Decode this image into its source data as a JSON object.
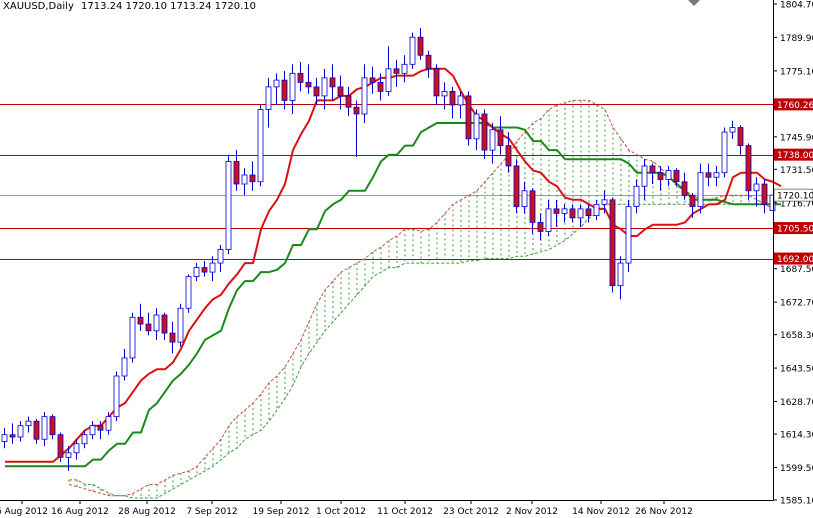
{
  "header": {
    "symbol": "XAUUSD,Daily",
    "values": "1713.24 1720.10 1713.24 1720.10"
  },
  "chart_data": {
    "type": "candlestick",
    "title": "XAUUSD,Daily",
    "ylim": [
      1585.1,
      1804.7
    ],
    "y_ticks": [
      "1804.70",
      "1789.90",
      "1775.10",
      "1760.26",
      "1745.90",
      "1731.50",
      "1720.10",
      "1716.70",
      "1705.50",
      "1692.00",
      "1687.50",
      "1672.70",
      "1658.30",
      "1643.50",
      "1628.70",
      "1614.30",
      "1599.50",
      "1585.10"
    ],
    "x_ticks": [
      "6 Aug 2012",
      "16 Aug 2012",
      "28 Aug 2012",
      "7 Sep 2012",
      "19 Sep 2012",
      "1 Oct 2012",
      "11 Oct 2012",
      "23 Oct 2012",
      "2 Nov 2012",
      "14 Nov 2012",
      "26 Nov 2012"
    ],
    "horizontal_levels": [
      {
        "price": 1760.26,
        "label": "1760.26"
      },
      {
        "price": 1738.0,
        "label": "1738.00"
      },
      {
        "price": 1705.5,
        "label": "1705.50"
      },
      {
        "price": 1692.0,
        "label": "1692.00"
      }
    ],
    "current_price": {
      "price": 1720.1,
      "label": "1720.10"
    },
    "candles": [
      [
        1611,
        1617,
        1608,
        1614
      ],
      [
        1614,
        1619,
        1610,
        1613
      ],
      [
        1613,
        1620,
        1611,
        1618
      ],
      [
        1618,
        1622,
        1615,
        1620
      ],
      [
        1620,
        1621,
        1610,
        1612
      ],
      [
        1612,
        1624,
        1609,
        1622
      ],
      [
        1622,
        1623,
        1612,
        1614
      ],
      [
        1614,
        1615,
        1602,
        1604
      ],
      [
        1604,
        1609,
        1598,
        1606
      ],
      [
        1606,
        1612,
        1603,
        1610
      ],
      [
        1610,
        1616,
        1608,
        1614
      ],
      [
        1614,
        1620,
        1612,
        1618
      ],
      [
        1618,
        1620,
        1612,
        1616
      ],
      [
        1616,
        1624,
        1614,
        1622
      ],
      [
        1622,
        1642,
        1620,
        1640
      ],
      [
        1640,
        1652,
        1638,
        1648
      ],
      [
        1648,
        1668,
        1646,
        1666
      ],
      [
        1666,
        1672,
        1660,
        1663
      ],
      [
        1663,
        1668,
        1658,
        1660
      ],
      [
        1660,
        1670,
        1656,
        1667
      ],
      [
        1667,
        1668,
        1656,
        1659
      ],
      [
        1659,
        1664,
        1650,
        1655
      ],
      [
        1655,
        1672,
        1653,
        1670
      ],
      [
        1670,
        1685,
        1668,
        1684
      ],
      [
        1684,
        1690,
        1682,
        1688
      ],
      [
        1688,
        1691,
        1684,
        1686
      ],
      [
        1686,
        1693,
        1682,
        1690
      ],
      [
        1690,
        1698,
        1686,
        1696
      ],
      [
        1696,
        1738,
        1694,
        1735
      ],
      [
        1735,
        1740,
        1722,
        1725
      ],
      [
        1725,
        1732,
        1720,
        1729
      ],
      [
        1729,
        1735,
        1722,
        1726
      ],
      [
        1726,
        1760,
        1724,
        1758
      ],
      [
        1758,
        1772,
        1750,
        1768
      ],
      [
        1768,
        1774,
        1760,
        1771
      ],
      [
        1771,
        1775,
        1758,
        1762
      ],
      [
        1762,
        1778,
        1756,
        1774
      ],
      [
        1774,
        1779,
        1766,
        1770
      ],
      [
        1770,
        1778,
        1765,
        1768
      ],
      [
        1768,
        1772,
        1760,
        1764
      ],
      [
        1764,
        1776,
        1758,
        1772
      ],
      [
        1772,
        1778,
        1762,
        1768
      ],
      [
        1768,
        1773,
        1758,
        1764
      ],
      [
        1764,
        1768,
        1755,
        1759
      ],
      [
        1759,
        1762,
        1737,
        1756
      ],
      [
        1756,
        1778,
        1752,
        1772
      ],
      [
        1772,
        1777,
        1765,
        1770
      ],
      [
        1770,
        1774,
        1762,
        1766
      ],
      [
        1766,
        1786,
        1764,
        1776
      ],
      [
        1776,
        1780,
        1768,
        1774
      ],
      [
        1774,
        1782,
        1770,
        1778
      ],
      [
        1778,
        1792,
        1776,
        1790
      ],
      [
        1790,
        1794,
        1780,
        1782
      ],
      [
        1782,
        1784,
        1772,
        1776
      ],
      [
        1776,
        1778,
        1760,
        1764
      ],
      [
        1764,
        1770,
        1758,
        1766
      ],
      [
        1766,
        1768,
        1754,
        1760
      ],
      [
        1760,
        1766,
        1754,
        1764
      ],
      [
        1764,
        1766,
        1742,
        1745
      ],
      [
        1745,
        1758,
        1740,
        1756
      ],
      [
        1756,
        1758,
        1736,
        1740
      ],
      [
        1740,
        1752,
        1734,
        1749
      ],
      [
        1749,
        1755,
        1738,
        1742
      ],
      [
        1742,
        1748,
        1730,
        1733
      ],
      [
        1733,
        1736,
        1712,
        1715
      ],
      [
        1715,
        1726,
        1712,
        1722
      ],
      [
        1722,
        1723,
        1703,
        1708
      ],
      [
        1708,
        1712,
        1700,
        1704
      ],
      [
        1704,
        1718,
        1702,
        1714
      ],
      [
        1714,
        1718,
        1706,
        1712
      ],
      [
        1712,
        1716,
        1708,
        1714
      ],
      [
        1714,
        1716,
        1708,
        1710
      ],
      [
        1710,
        1716,
        1706,
        1714
      ],
      [
        1714,
        1716,
        1708,
        1711
      ],
      [
        1711,
        1718,
        1709,
        1716
      ],
      [
        1716,
        1722,
        1712,
        1718
      ],
      [
        1718,
        1719,
        1677,
        1680
      ],
      [
        1680,
        1693,
        1674,
        1690
      ],
      [
        1690,
        1718,
        1686,
        1715
      ],
      [
        1715,
        1727,
        1712,
        1724
      ],
      [
        1724,
        1736,
        1718,
        1733
      ],
      [
        1733,
        1734,
        1725,
        1730
      ],
      [
        1730,
        1733,
        1722,
        1727
      ],
      [
        1727,
        1733,
        1724,
        1731
      ],
      [
        1731,
        1732,
        1724,
        1726
      ],
      [
        1726,
        1730,
        1718,
        1720
      ],
      [
        1720,
        1721,
        1710,
        1715
      ],
      [
        1715,
        1734,
        1712,
        1730
      ],
      [
        1730,
        1734,
        1724,
        1728
      ],
      [
        1728,
        1733,
        1724,
        1730
      ],
      [
        1730,
        1750,
        1728,
        1748
      ],
      [
        1748,
        1753,
        1745,
        1750
      ],
      [
        1750,
        1751,
        1738,
        1742
      ],
      [
        1742,
        1743,
        1718,
        1722
      ],
      [
        1722,
        1728,
        1715,
        1725
      ],
      [
        1725,
        1727,
        1712,
        1716
      ],
      [
        1713.24,
        1720.1,
        1713.24,
        1720.1
      ]
    ],
    "tenkan_sen": [
      1602,
      1602,
      1602,
      1602,
      1602,
      1602,
      1602,
      1605,
      1608,
      1612,
      1616,
      1618,
      1618,
      1622,
      1626,
      1628,
      1633,
      1638,
      1641,
      1643,
      1643,
      1646,
      1652,
      1660,
      1665,
      1670,
      1674,
      1676,
      1681,
      1685,
      1690,
      1690,
      1705,
      1713,
      1718,
      1725,
      1740,
      1747,
      1753,
      1762,
      1762,
      1762,
      1764,
      1764,
      1767,
      1768,
      1770,
      1772,
      1772,
      1773,
      1773,
      1773,
      1775,
      1776,
      1776,
      1776,
      1773,
      1766,
      1760,
      1755,
      1753,
      1750,
      1747,
      1745,
      1740,
      1735,
      1731,
      1730,
      1726,
      1724,
      1719,
      1718,
      1718,
      1716,
      1714,
      1714,
      1707,
      1705,
      1702,
      1702,
      1705,
      1707,
      1707,
      1707,
      1707,
      1708,
      1712,
      1714,
      1716,
      1716,
      1718,
      1728,
      1730,
      1730,
      1730,
      1727,
      1726,
      1724
    ],
    "kijun_sen": [
      1600,
      1600,
      1600,
      1600,
      1600,
      1600,
      1600,
      1600,
      1600,
      1600,
      1600,
      1603,
      1603,
      1607,
      1610,
      1610,
      1615,
      1615,
      1625,
      1628,
      1633,
      1638,
      1641,
      1645,
      1650,
      1656,
      1658,
      1660,
      1670,
      1678,
      1682,
      1682,
      1686,
      1686,
      1687,
      1690,
      1698,
      1698,
      1705,
      1705,
      1713,
      1716,
      1718,
      1722,
      1722,
      1722,
      1728,
      1735,
      1738,
      1738,
      1742,
      1742,
      1748,
      1750,
      1752,
      1752,
      1752,
      1752,
      1752,
      1752,
      1752,
      1750,
      1750,
      1750,
      1750,
      1749,
      1744,
      1744,
      1740,
      1740,
      1736,
      1736,
      1736,
      1736,
      1736,
      1736,
      1736,
      1736,
      1734,
      1730,
      1730,
      1730,
      1730,
      1728,
      1725,
      1722,
      1718,
      1718,
      1718,
      1718,
      1717,
      1716,
      1716,
      1716,
      1716,
      1716,
      1716,
      1716
    ],
    "senkou_span_a": [
      1592,
      1591,
      1590,
      1589,
      1588,
      1587,
      1587,
      1587,
      1588,
      1590,
      1592,
      1592,
      1594,
      1596,
      1597,
      1598,
      1600,
      1604,
      1608,
      1612,
      1618,
      1622,
      1625,
      1628,
      1632,
      1637,
      1640,
      1644,
      1650,
      1656,
      1664,
      1672,
      1678,
      1682,
      1686,
      1688,
      1690,
      1692,
      1695,
      1697,
      1700,
      1702,
      1705,
      1705,
      1704,
      1705,
      1708,
      1712,
      1716,
      1718,
      1720,
      1722,
      1726,
      1730,
      1734,
      1738,
      1744,
      1748,
      1752,
      1754,
      1758,
      1760,
      1761,
      1762,
      1762,
      1762,
      1760,
      1758,
      1750,
      1745,
      1740,
      1738,
      1736,
      1735,
      1732,
      1728,
      1724,
      1722,
      1720,
      1718,
      1718,
      1719,
      1720,
      1720,
      1720,
      1720,
      1718,
      1716,
      1714,
      1716,
      1718
    ],
    "senkou_span_b": [
      1594,
      1594,
      1592,
      1592,
      1590,
      1588,
      1587,
      1587,
      1586,
      1586,
      1586,
      1586,
      1588,
      1590,
      1592,
      1594,
      1596,
      1598,
      1600,
      1603,
      1606,
      1608,
      1612,
      1614,
      1616,
      1620,
      1625,
      1630,
      1636,
      1644,
      1650,
      1655,
      1660,
      1664,
      1668,
      1672,
      1676,
      1680,
      1684,
      1686,
      1688,
      1688,
      1690,
      1690,
      1690,
      1690,
      1690,
      1690,
      1690,
      1690,
      1691,
      1691,
      1692,
      1692,
      1692,
      1692,
      1693,
      1693,
      1694,
      1695,
      1696,
      1698,
      1700,
      1703,
      1706,
      1710,
      1712,
      1716,
      1716,
      1716,
      1716,
      1716,
      1716,
      1716,
      1716,
      1716,
      1716,
      1716,
      1716,
      1716,
      1716,
      1716,
      1716,
      1716,
      1716,
      1716,
      1716,
      1716,
      1716,
      1716,
      1716
    ],
    "chikou_span": [
      1600,
      1604,
      1612,
      1618,
      1634,
      1646,
      1660,
      1666,
      1660,
      1662,
      1672,
      1686,
      1688,
      1690,
      1702,
      1726,
      1722,
      1760,
      1760,
      1770,
      1766,
      1774,
      1768,
      1764,
      1764,
      1770,
      1758,
      1770,
      1767,
      1760,
      1776,
      1785,
      1782,
      1770,
      1765,
      1763,
      1762,
      1745,
      1754,
      1740,
      1746,
      1740,
      1734,
      1716,
      1720,
      1708,
      1704,
      1714,
      1712,
      1712,
      1710,
      1714,
      1711,
      1716,
      1718,
      1680,
      1690,
      1715,
      1724,
      1733,
      1730,
      1727,
      1731,
      1726,
      1720,
      1715,
      1730,
      1728,
      1730,
      1748,
      1750,
      1742,
      1722,
      1725,
      1716,
      1720
    ]
  }
}
